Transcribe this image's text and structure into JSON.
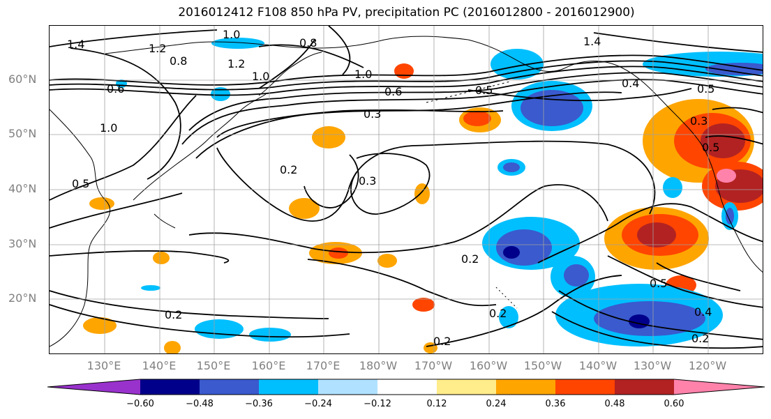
{
  "title": "2016012412 F108 850 hPa PV, precipitation PC (2016012800 - 2016012900)",
  "lat_labels": [
    "60°N",
    "50°N",
    "40°N",
    "30°N",
    "20°N"
  ],
  "lon_labels": [
    "130°E",
    "140°E",
    "150°E",
    "160°E",
    "170°E",
    "180°W",
    "170°W",
    "160°W",
    "150°W",
    "140°W",
    "130°W",
    "120°W"
  ],
  "colorbar": {
    "ticks": [
      "−0.60",
      "−0.48",
      "−0.36",
      "−0.24",
      "−0.12",
      "0.12",
      "0.24",
      "0.36",
      "0.48",
      "0.60"
    ],
    "colors": [
      "#9932cc",
      "#00008b",
      "#3a5acd",
      "#00bfff",
      "#b0e2ff",
      "#ffffff",
      "#ffec8b",
      "#ffa500",
      "#ff4500",
      "#b22222",
      "#ff82ab"
    ]
  },
  "contour_labels": [
    "1.4",
    "1.0",
    "1.2",
    "0.8",
    "0.8",
    "1.2",
    "1.0",
    "1.0",
    "0.6",
    "1.0",
    "0.6",
    "1.4",
    "0.5",
    "0.4",
    "0.3",
    "0.5",
    "0.2",
    "0.3",
    "0.2",
    "0.5",
    "0.4",
    "0.2",
    "0.2",
    "0.2",
    "0.2",
    "0.3",
    "0.5",
    "0.5"
  ]
}
